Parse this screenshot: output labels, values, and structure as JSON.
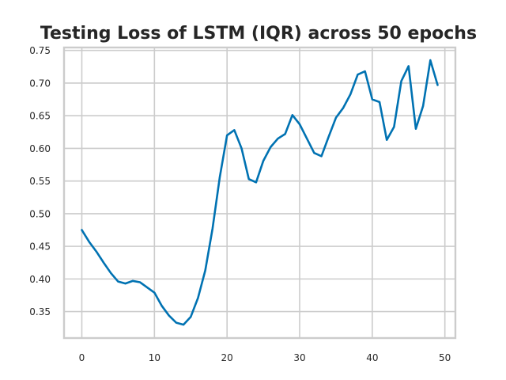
{
  "chart_data": {
    "type": "line",
    "title": "Testing Loss of LSTM (IQR) across 50 epochs",
    "xlabel": "",
    "ylabel": "",
    "xlim": [
      -2.45,
      51.45
    ],
    "ylim": [
      0.3095,
      0.7545
    ],
    "xticks": [
      0,
      10,
      20,
      30,
      40,
      50
    ],
    "yticks": [
      0.35,
      0.4,
      0.45,
      0.5,
      0.55,
      0.6,
      0.65,
      0.7,
      0.75
    ],
    "grid": true,
    "legend": "none",
    "colors": {
      "series": "#0072b2",
      "grid": "#cccccc",
      "text": "#262626"
    },
    "series": [
      {
        "x": [
          0,
          1,
          2,
          3,
          4,
          5,
          6,
          7,
          8,
          9,
          10,
          11,
          12,
          13,
          14,
          15,
          16,
          17,
          18,
          19,
          20,
          21,
          22,
          23,
          24,
          25,
          26,
          27,
          28,
          29,
          30,
          31,
          32,
          33,
          34,
          35,
          36,
          37,
          38,
          39,
          40,
          41,
          42,
          43,
          44,
          45,
          46,
          47,
          48,
          49
        ],
        "values": [
          0.475,
          0.457,
          0.442,
          0.425,
          0.409,
          0.396,
          0.393,
          0.397,
          0.395,
          0.387,
          0.379,
          0.359,
          0.344,
          0.333,
          0.33,
          0.342,
          0.371,
          0.413,
          0.477,
          0.556,
          0.62,
          0.628,
          0.6,
          0.553,
          0.548,
          0.581,
          0.602,
          0.615,
          0.622,
          0.651,
          0.637,
          0.615,
          0.593,
          0.588,
          0.618,
          0.647,
          0.662,
          0.683,
          0.713,
          0.718,
          0.675,
          0.671,
          0.613,
          0.633,
          0.703,
          0.726,
          0.63,
          0.665,
          0.735,
          0.697
        ]
      }
    ]
  }
}
